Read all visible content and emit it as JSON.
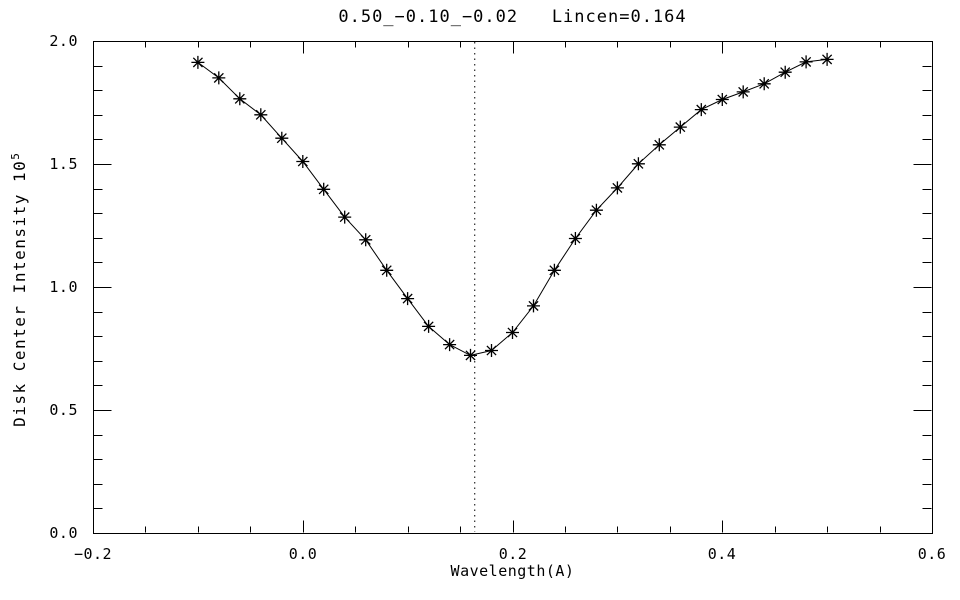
{
  "chart_data": {
    "type": "line",
    "title": "0.50_−0.10_−0.02   Lincen=0.164",
    "xlabel": "Wavelength(A)",
    "ylabel": "Disk Center Intensity 10",
    "ylabel_exponent": "5",
    "xlim": [
      -0.2,
      0.6
    ],
    "ylim": [
      0.0,
      2.0
    ],
    "x_major_ticks": [
      -0.2,
      0.0,
      0.2,
      0.4,
      0.6
    ],
    "x_tick_labels": [
      "−0.2",
      "0.0",
      "0.2",
      "0.4",
      "0.6"
    ],
    "x_minor_step": 0.05,
    "y_major_ticks": [
      0.0,
      0.5,
      1.0,
      1.5,
      2.0
    ],
    "y_tick_labels": [
      "0.0",
      "0.5",
      "1.0",
      "1.5",
      "2.0"
    ],
    "y_minor_step": 0.1,
    "grid": false,
    "marker_style": "asterisk",
    "line_color": "#000000",
    "background_color": "#ffffff",
    "reference_line": {
      "orientation": "vertical",
      "x": 0.164,
      "style": "dotted"
    },
    "lincen_value": "0.164",
    "series": [
      {
        "name": "disk-center-intensity",
        "x": [
          -0.1,
          -0.08,
          -0.06,
          -0.04,
          -0.02,
          0.0,
          0.02,
          0.04,
          0.06,
          0.08,
          0.1,
          0.12,
          0.14,
          0.16,
          0.18,
          0.2,
          0.22,
          0.24,
          0.26,
          0.28,
          0.3,
          0.32,
          0.34,
          0.36,
          0.38,
          0.4,
          0.42,
          0.44,
          0.46,
          0.48,
          0.5
        ],
        "y": [
          1.913,
          1.85,
          1.765,
          1.7,
          1.605,
          1.51,
          1.397,
          1.284,
          1.192,
          1.068,
          0.953,
          0.84,
          0.766,
          0.722,
          0.742,
          0.815,
          0.923,
          1.068,
          1.197,
          1.312,
          1.403,
          1.501,
          1.578,
          1.65,
          1.721,
          1.762,
          1.793,
          1.826,
          1.873,
          1.915,
          1.925
        ]
      }
    ]
  }
}
